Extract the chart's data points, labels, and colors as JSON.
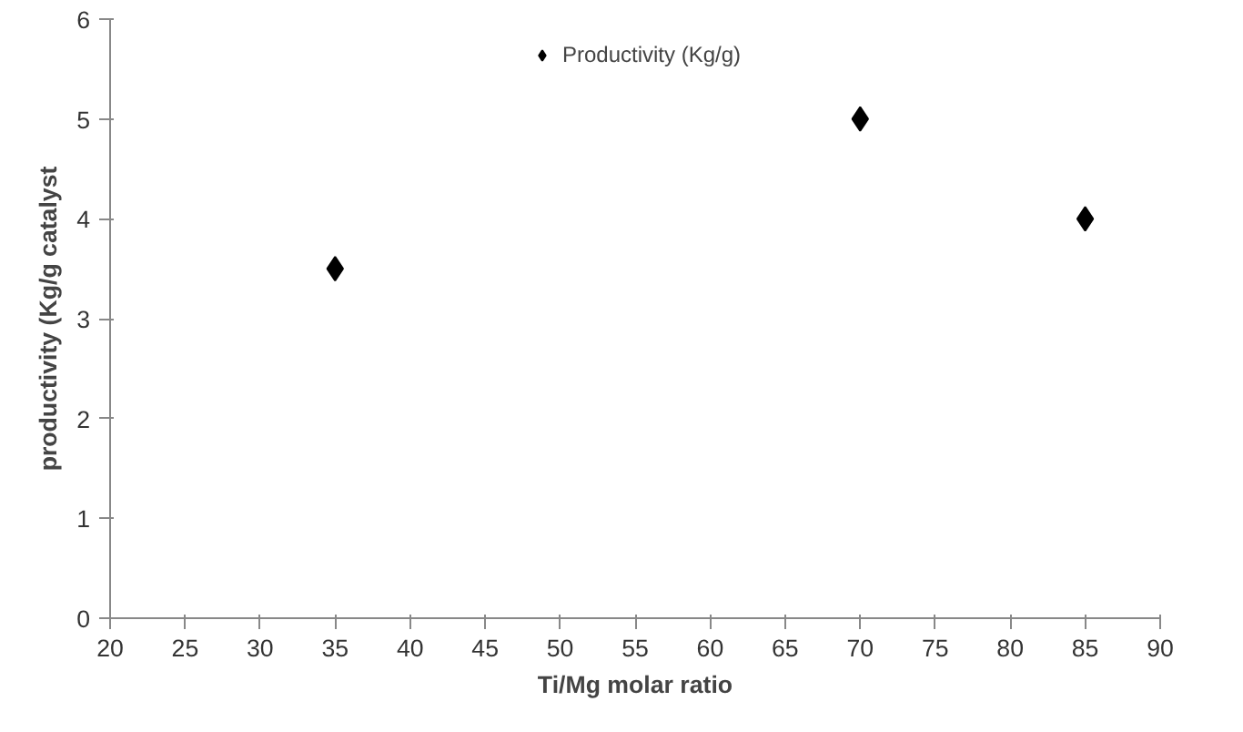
{
  "chart_data": {
    "type": "scatter",
    "xlabel": "Ti/Mg molar ratio",
    "ylabel": "productivity (Kg/g catalyst",
    "series": [
      {
        "name": "Productivity (Kg/g)",
        "color": "#000000",
        "x": [
          35,
          70,
          85
        ],
        "values": [
          3.5,
          5,
          4
        ]
      }
    ],
    "xlim": [
      20,
      90
    ],
    "xticks": [
      20,
      25,
      30,
      35,
      40,
      45,
      50,
      55,
      60,
      65,
      70,
      75,
      80,
      85,
      90
    ],
    "ylim": [
      0,
      6
    ],
    "yticks": [
      0,
      1,
      2,
      3,
      4,
      5,
      6
    ],
    "grid": false,
    "legend": "top",
    "marker": "diamond"
  }
}
